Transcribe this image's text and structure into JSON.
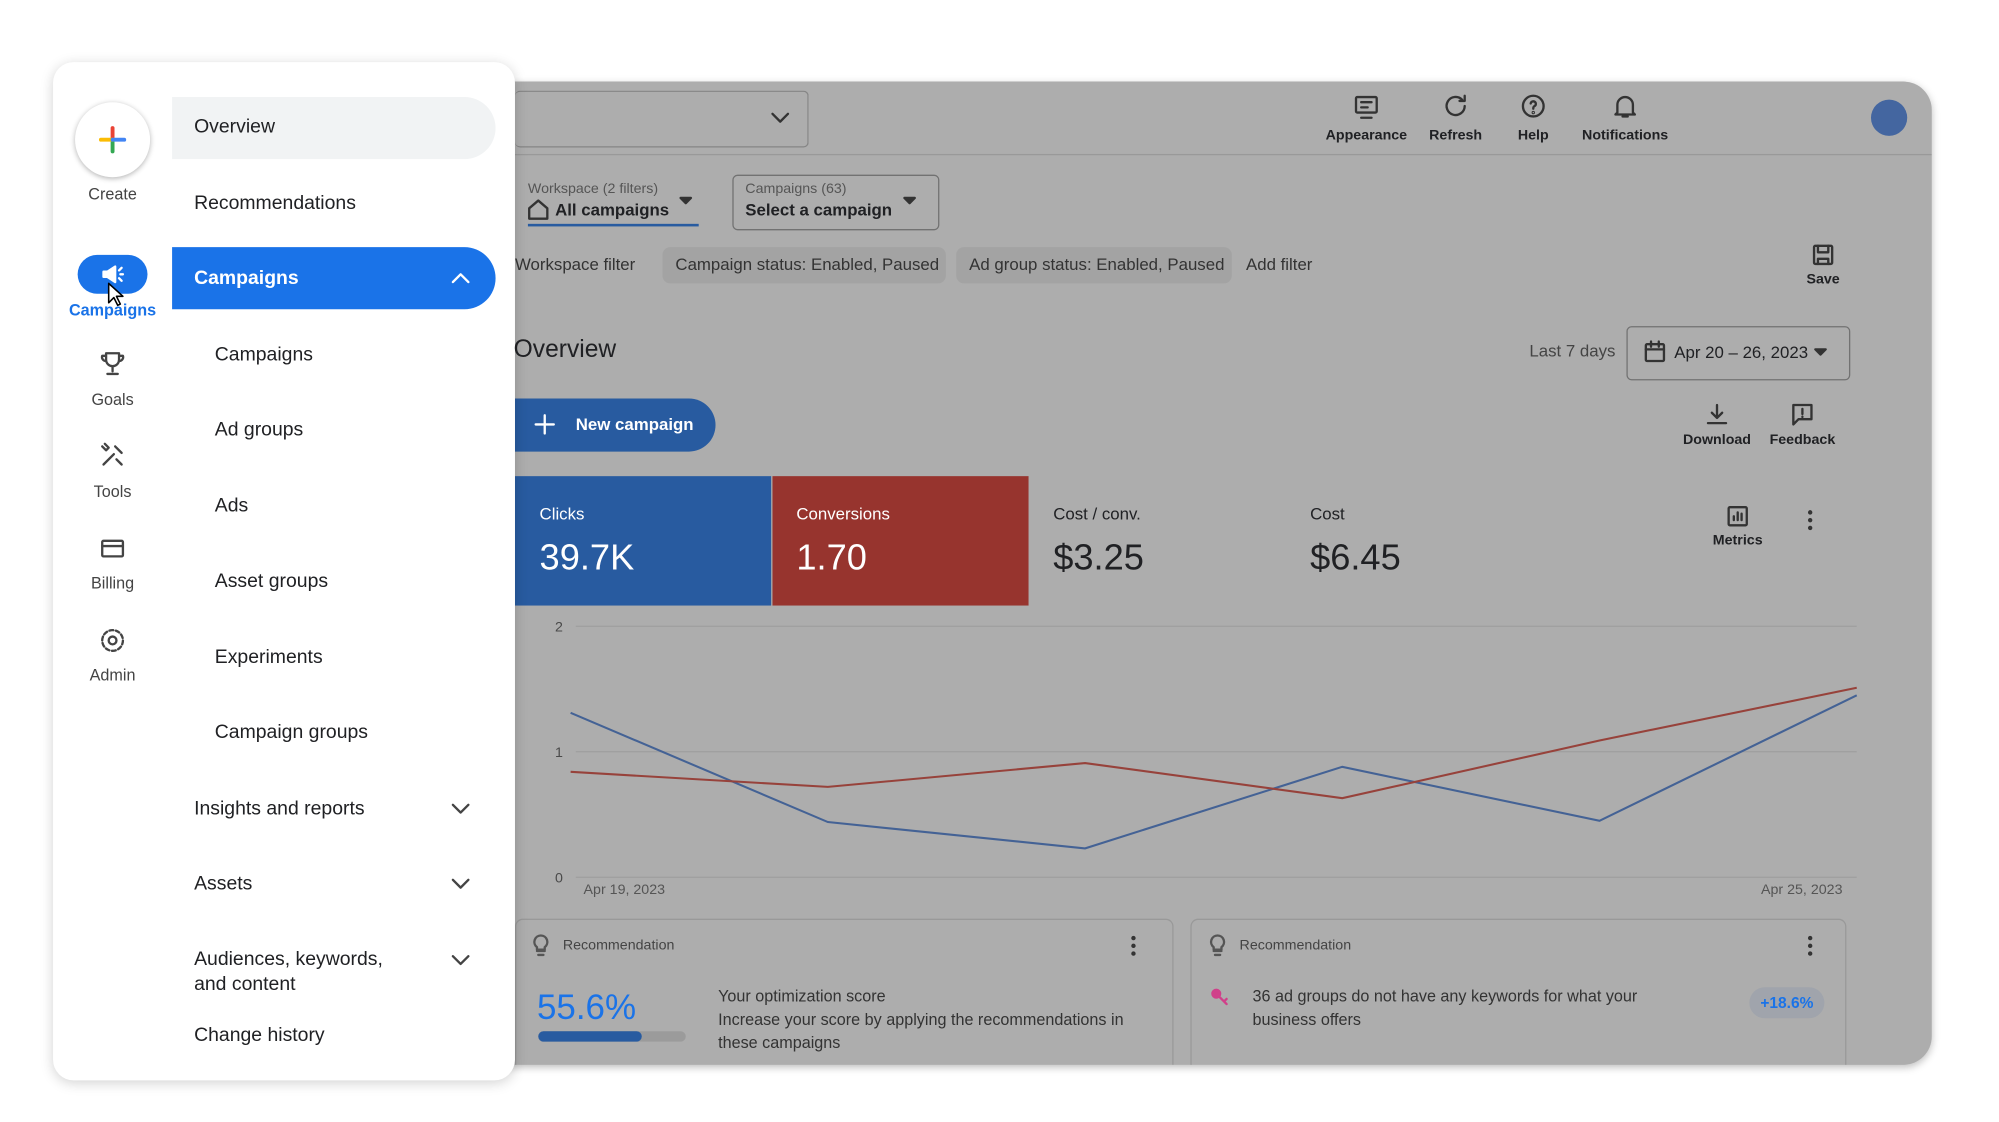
{
  "rail": [
    {
      "label": "Create"
    },
    {
      "label": "Campaigns"
    },
    {
      "label": "Goals"
    },
    {
      "label": "Tools"
    },
    {
      "label": "Billing"
    },
    {
      "label": "Admin"
    }
  ],
  "menu": {
    "items": [
      "Overview",
      "Recommendations"
    ],
    "open_section": "Campaigns",
    "submenu": [
      "Campaigns",
      "Ad groups",
      "Ads",
      "Asset groups",
      "Experiments",
      "Campaign groups"
    ],
    "sections": [
      "Insights and reports",
      "Assets",
      "Audiences, keywords, and content"
    ],
    "footer_item": "Change history"
  },
  "toolbar": [
    "Appearance",
    "Refresh",
    "Help",
    "Notifications"
  ],
  "scope": {
    "workspace_label": "Workspace (2 filters)",
    "workspace_value": "All campaigns",
    "campaigns_label": "Campaigns (63)",
    "campaigns_value": "Select a campaign"
  },
  "filters": [
    "Workspace filter",
    "Campaign status: Enabled, Paused",
    "Ad group status: Enabled, Paused",
    "Add filter"
  ],
  "save": "Save",
  "overview": {
    "title": "Overview",
    "range_label": "Last 7 days",
    "date_range": "Apr 20 – 26, 2023",
    "new_button": "New campaign",
    "download": "Download",
    "feedback": "Feedback",
    "metrics_button": "Metrics"
  },
  "metrics": [
    {
      "label": "Clicks",
      "value": "39.7K"
    },
    {
      "label": "Conversions",
      "value": "1.70"
    },
    {
      "label": "Cost / conv.",
      "value": "$3.25"
    },
    {
      "label": "Cost",
      "value": "$6.45"
    }
  ],
  "chart": {
    "type": "line",
    "ylim": [
      0,
      2
    ],
    "yticks": [
      0,
      1,
      2
    ],
    "x_labels": [
      "Apr 19, 2023",
      "Apr 25, 2023"
    ],
    "series": [
      {
        "color": "#4a7fd6",
        "values": [
          1.31,
          0.44,
          0.23,
          0.88,
          0.45,
          1.45
        ]
      },
      {
        "color": "#d9483b",
        "values": [
          0.84,
          0.72,
          0.91,
          0.63,
          1.09,
          1.51
        ]
      }
    ]
  },
  "recommendations": [
    {
      "header": "Recommendation",
      "score": "55.6%",
      "title": "Your optimization score",
      "text": "Increase your score by applying the recommendations in these campaigns"
    },
    {
      "header": "Recommendation",
      "text": "36 ad groups do not have any keywords for what your business offers",
      "uplift": "+18.6%"
    }
  ]
}
